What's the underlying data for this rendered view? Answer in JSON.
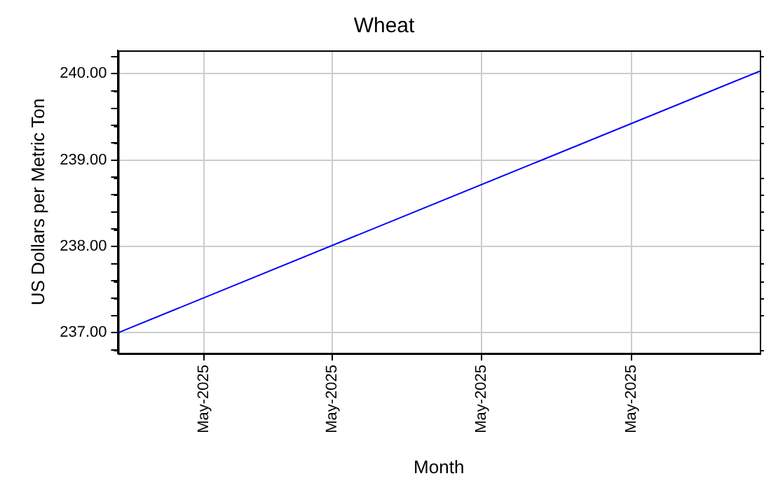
{
  "chart_data": {
    "type": "line",
    "title": "Wheat",
    "xlabel": "Month",
    "ylabel": "US Dollars per Metric Ton",
    "x": [
      "2025-05-01",
      "2025-05-31"
    ],
    "series": [
      {
        "color": "#0000ff",
        "values": [
          237.0,
          240.03
        ]
      }
    ],
    "xlim": [
      "2025-05-01",
      "2025-05-31"
    ],
    "xticks": [
      {
        "value": "2025-05-05",
        "label": "May-2025"
      },
      {
        "value": "2025-05-11",
        "label": "May-2025"
      },
      {
        "value": "2025-05-18",
        "label": "May-2025"
      },
      {
        "value": "2025-05-25",
        "label": "May-2025"
      }
    ],
    "ylim": [
      236.76,
      240.27
    ],
    "yticks": [
      {
        "value": 236.8,
        "label": null
      },
      {
        "value": 237,
        "label": "237.00"
      },
      {
        "value": 237.2,
        "label": null
      },
      {
        "value": 237.4,
        "label": null
      },
      {
        "value": 237.6,
        "label": null
      },
      {
        "value": 237.8,
        "label": null
      },
      {
        "value": 238,
        "label": "238.00"
      },
      {
        "value": 238.2,
        "label": null
      },
      {
        "value": 238.4,
        "label": null
      },
      {
        "value": 238.6,
        "label": null
      },
      {
        "value": 238.8,
        "label": null
      },
      {
        "value": 239,
        "label": "239.00"
      },
      {
        "value": 239.2,
        "label": null
      },
      {
        "value": 239.4,
        "label": null
      },
      {
        "value": 239.6,
        "label": null
      },
      {
        "value": 239.8,
        "label": null
      },
      {
        "value": 240,
        "label": "240.00"
      },
      {
        "value": 240.2,
        "label": null
      }
    ],
    "grid": true,
    "legend": false,
    "marker": "none",
    "line_style": "solid"
  }
}
